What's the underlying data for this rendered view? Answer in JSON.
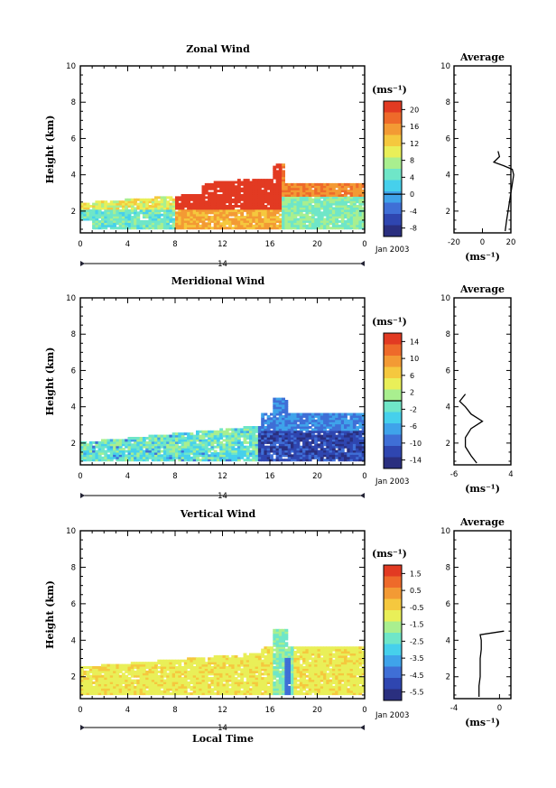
{
  "figure": {
    "date_label": "Jan 2003",
    "day_label": "14",
    "xlabel": "Local Time",
    "avg_title": "Average",
    "avg_unit": "(ms⁻¹)",
    "cb_unit": "(ms⁻¹)",
    "colors": [
      "#2a2f7f",
      "#2f46b0",
      "#3f6fd6",
      "#3fa3ea",
      "#46d0ec",
      "#6fe6c8",
      "#a9ef8f",
      "#e9ef58",
      "#f5c83e",
      "#f39a34",
      "#ee6a2a",
      "#e23a22"
    ]
  },
  "chart_data": [
    {
      "type": "heatmap",
      "title": "Zonal Wind",
      "ylabel": "Height (km)",
      "xlabel": "",
      "x_ticks": [
        "0",
        "4",
        "8",
        "12",
        "16",
        "20",
        "0"
      ],
      "y_ticks": [
        "2",
        "4",
        "6",
        "8",
        "10"
      ],
      "xlim": [
        0,
        24
      ],
      "ylim": [
        0.8,
        10
      ],
      "colorbar": {
        "ticks": [
          "-8",
          "-4",
          "0",
          "4",
          "8",
          "12",
          "16",
          "20"
        ],
        "range": [
          -10,
          22
        ],
        "zero_line": 0
      },
      "description_values": {
        "lower_layer_height_km": [
          0.9,
          2.5
        ],
        "upper_layer_height_km": [
          2.5,
          3.6
        ],
        "max_height_km": 4.6
      },
      "average_profile": {
        "x_ticks": [
          "-20",
          "0",
          "20"
        ],
        "y_ticks": [
          "2",
          "4",
          "6",
          "8",
          "10"
        ],
        "xlim": [
          -20,
          20
        ],
        "height_km": [
          0.9,
          1.5,
          2.0,
          2.5,
          3.0,
          3.5,
          4.0,
          4.3,
          4.5,
          4.7,
          5.0,
          5.3
        ],
        "value_ms": [
          16,
          17,
          18,
          19,
          20,
          21,
          22,
          21,
          15,
          8,
          12,
          11
        ]
      }
    },
    {
      "type": "heatmap",
      "title": "Meridional Wind",
      "ylabel": "Height (km)",
      "xlabel": "",
      "x_ticks": [
        "0",
        "4",
        "8",
        "12",
        "16",
        "20",
        "0"
      ],
      "y_ticks": [
        "2",
        "4",
        "6",
        "8",
        "10"
      ],
      "xlim": [
        0,
        24
      ],
      "ylim": [
        0.8,
        10
      ],
      "colorbar": {
        "ticks": [
          "-14",
          "-10",
          "-6",
          "-2",
          "2",
          "6",
          "10",
          "14"
        ],
        "range": [
          -16,
          16
        ],
        "zero_line": 0
      },
      "average_profile": {
        "x_ticks": [
          "-6",
          "4"
        ],
        "y_ticks": [
          "2",
          "4",
          "6",
          "8",
          "10"
        ],
        "xlim": [
          -6,
          4
        ],
        "height_km": [
          0.9,
          1.3,
          1.8,
          2.3,
          2.8,
          3.2,
          3.6,
          4.0,
          4.3,
          4.7
        ],
        "value_ms": [
          -2,
          -3,
          -4,
          -4,
          -3,
          -1,
          -3,
          -4,
          -5,
          -4
        ]
      }
    },
    {
      "type": "heatmap",
      "title": "Vertical Wind",
      "ylabel": "Height (km)",
      "xlabel": "Local Time",
      "x_ticks": [
        "0",
        "4",
        "8",
        "12",
        "16",
        "20",
        "0"
      ],
      "y_ticks": [
        "2",
        "4",
        "6",
        "8",
        "10"
      ],
      "xlim": [
        0,
        24
      ],
      "ylim": [
        0.8,
        10
      ],
      "colorbar": {
        "ticks": [
          "-5.5",
          "-4.5",
          "-3.5",
          "-2.5",
          "-1.5",
          "-0.5",
          "0.5",
          "1.5"
        ],
        "range": [
          -6,
          2
        ],
        "zero_line": null
      },
      "average_profile": {
        "x_ticks": [
          "-4",
          "0"
        ],
        "y_ticks": [
          "2",
          "4",
          "6",
          "8",
          "10"
        ],
        "xlim": [
          -4,
          1
        ],
        "height_km": [
          0.9,
          1.5,
          2.0,
          2.5,
          3.0,
          3.5,
          4.0,
          4.3,
          4.5
        ],
        "value_ms": [
          -1.8,
          -1.8,
          -1.7,
          -1.7,
          -1.7,
          -1.6,
          -1.6,
          -1.7,
          0.4
        ]
      }
    }
  ]
}
